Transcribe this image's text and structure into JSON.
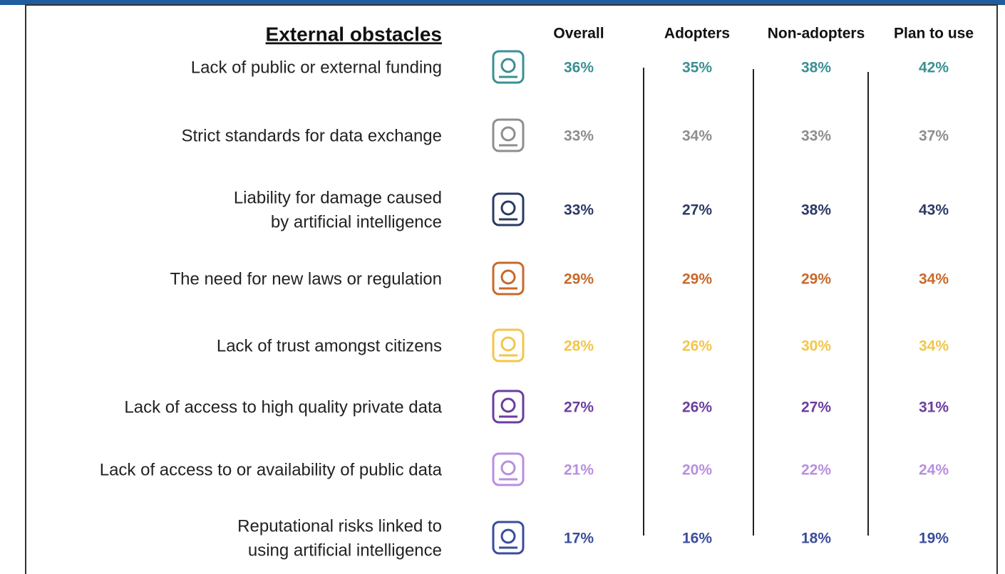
{
  "title": "External obstacles",
  "columns": [
    "Overall",
    "Adopters",
    "Non-adopters",
    "Plan to use"
  ],
  "rows": [
    {
      "label": [
        "Lack of public or external funding"
      ],
      "color": "#3a9093",
      "values": [
        "36%",
        "35%",
        "38%",
        "42%"
      ]
    },
    {
      "label": [
        "Strict standards for data exchange"
      ],
      "color": "#8e8e8e",
      "values": [
        "33%",
        "34%",
        "33%",
        "37%"
      ]
    },
    {
      "label": [
        "Liability for damage caused",
        "by artificial intelligence"
      ],
      "color": "#2b3a66",
      "values": [
        "33%",
        "27%",
        "38%",
        "43%"
      ]
    },
    {
      "label": [
        "The need for new laws or regulation"
      ],
      "color": "#c8692a",
      "values": [
        "29%",
        "29%",
        "29%",
        "34%"
      ]
    },
    {
      "label": [
        "Lack of trust amongst citizens"
      ],
      "color": "#f3c649",
      "values": [
        "28%",
        "26%",
        "30%",
        "34%"
      ]
    },
    {
      "label": [
        "Lack of access to high quality private data"
      ],
      "color": "#6a3e9e",
      "values": [
        "27%",
        "26%",
        "27%",
        "31%"
      ]
    },
    {
      "label": [
        "Lack of access to or availability of public data"
      ],
      "color": "#b98ee0",
      "values": [
        "21%",
        "20%",
        "22%",
        "24%"
      ]
    },
    {
      "label": [
        "Reputational risks linked to",
        "using artificial intelligence"
      ],
      "color": "#3a4d9c",
      "values": [
        "17%",
        "16%",
        "18%",
        "19%"
      ]
    }
  ]
}
